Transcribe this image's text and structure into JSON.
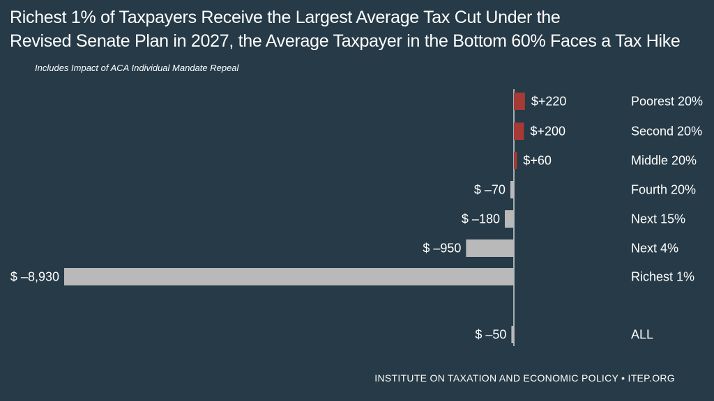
{
  "chart_data": {
    "type": "bar",
    "orientation": "horizontal",
    "title_line1": "Richest 1% of Taxpayers Receive the Largest Average Tax Cut Under the",
    "title_line2": "Revised Senate Plan in 2027, the Average Taxpayer in the Bottom 60% Faces a Tax Hike",
    "subtitle": "Includes Impact of ACA Individual Mandate Repeal",
    "categories": [
      "Poorest 20%",
      "Second 20%",
      "Middle 20%",
      "Fourth 20%",
      "Next 15%",
      "Next 4%",
      "Richest 1%",
      "ALL"
    ],
    "values": [
      220,
      200,
      60,
      -70,
      -180,
      -950,
      -8930,
      -50
    ],
    "data_labels": [
      "$+220",
      "$+200",
      "$+60",
      "$ –70",
      "$ –180",
      "$ –950",
      "$ –8,930",
      "$ –50"
    ],
    "colors": {
      "positive": "#a63a37",
      "negative": "#b9b9b9",
      "axis": "#cfd4d8",
      "background": "#263a47"
    },
    "grid": false,
    "legend": "none"
  },
  "footer": "INSTITUTE ON TAXATION AND ECONOMIC POLICY • ITEP.ORG"
}
